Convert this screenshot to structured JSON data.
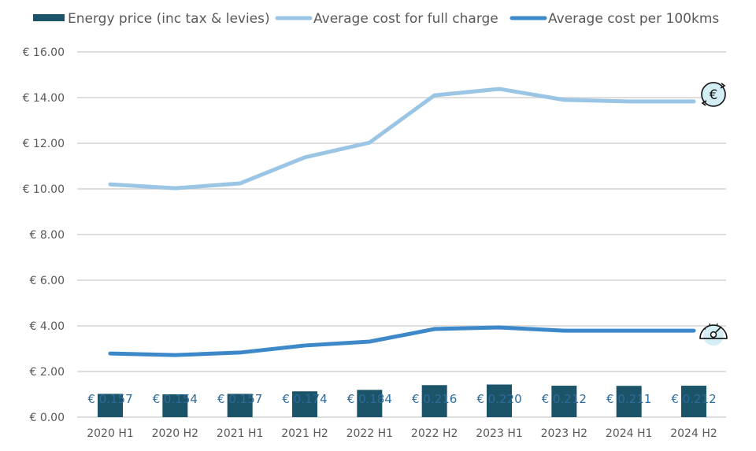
{
  "chart_data": {
    "type": "line",
    "title": "",
    "xlabel": "",
    "ylabel": "",
    "ylim": [
      0,
      16
    ],
    "yticks": [
      0,
      2,
      4,
      6,
      8,
      10,
      12,
      14,
      16
    ],
    "ytick_labels": [
      "€ 0.00",
      "€ 2.00",
      "€ 4.00",
      "€ 6.00",
      "€ 8.00",
      "€ 10.00",
      "€ 12.00",
      "€ 14.00",
      "€ 16.00"
    ],
    "grid": true,
    "legend_position": "top",
    "categories": [
      "2020 H1",
      "2020 H2",
      "2021 H1",
      "2021 H2",
      "2022 H1",
      "2022 H2",
      "2023 H1",
      "2023 H2",
      "2024 H1",
      "2024 H2"
    ],
    "series": [
      {
        "name": "Energy price (inc tax & levies)",
        "type": "bar",
        "color": "#1b5468",
        "values": [
          0.157,
          0.154,
          0.157,
          0.174,
          0.184,
          0.216,
          0.22,
          0.212,
          0.211,
          0.212
        ],
        "data_labels": [
          "€ 0.157",
          "€ 0.154",
          "€ 0.157",
          "€ 0.174",
          "€ 0.184",
          "€ 0.216",
          "€ 0.220",
          "€ 0.212",
          "€ 0.211",
          "€ 0.212"
        ]
      },
      {
        "name": "Average cost for full charge",
        "type": "line",
        "color": "#9bc5e4",
        "end_icon": "euro-cycle-icon",
        "values": [
          10.2,
          10.03,
          10.24,
          11.38,
          12.03,
          14.1,
          14.38,
          13.9,
          13.83,
          13.83
        ]
      },
      {
        "name": "Average cost per 100kms",
        "type": "line",
        "color": "#3d88c8",
        "end_icon": "speedometer-icon",
        "values": [
          2.79,
          2.72,
          2.83,
          3.14,
          3.31,
          3.86,
          3.93,
          3.79,
          3.79,
          3.79
        ]
      }
    ]
  }
}
